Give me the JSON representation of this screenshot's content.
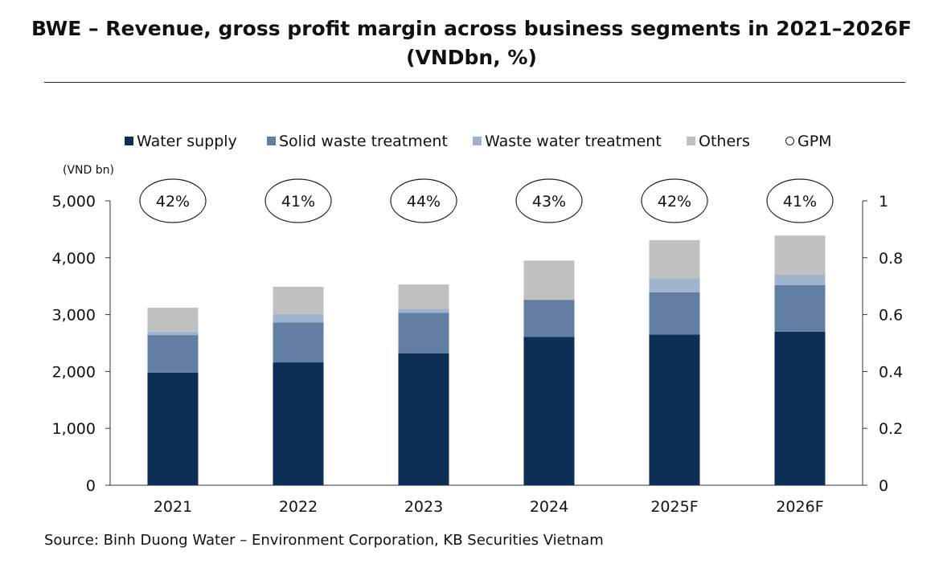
{
  "title": {
    "line1": "BWE – Revenue, gross profit margin across business segments in 2021–2026F",
    "line2": "(VNDbn, %)"
  },
  "unit_label": "(VND bn)",
  "source": "Source: Binh Duong Water – Environment Corporation, KB Securities Vietnam",
  "colors": {
    "water_supply": "#0d2e55",
    "solid_waste": "#627fa3",
    "waste_water": "#9fb3cc",
    "others": "#c0c0c0"
  },
  "chart_data": {
    "type": "bar",
    "stacked": true,
    "title": "BWE – Revenue, gross profit margin across business segments in 2021–2026F (VNDbn, %)",
    "categories": [
      "2021",
      "2022",
      "2023",
      "2024",
      "2025F",
      "2026F"
    ],
    "series": [
      {
        "name": "Water supply",
        "values": [
          1980,
          2160,
          2320,
          2610,
          2650,
          2700
        ]
      },
      {
        "name": "Solid waste treatment",
        "values": [
          660,
          700,
          710,
          650,
          740,
          820
        ]
      },
      {
        "name": "Waste water treatment",
        "values": [
          60,
          150,
          70,
          0,
          240,
          180
        ]
      },
      {
        "name": "Others",
        "values": [
          420,
          480,
          430,
          690,
          680,
          690
        ]
      }
    ],
    "gpm": {
      "name": "GPM",
      "values": [
        "42%",
        "41%",
        "44%",
        "43%",
        "42%",
        "41%"
      ]
    },
    "y_left": {
      "ticks": [
        "0",
        "1,000",
        "2,000",
        "3,000",
        "4,000",
        "5,000"
      ],
      "ylim": [
        0,
        5000
      ]
    },
    "y_right": {
      "ticks": [
        "0",
        "0.2",
        "0.4",
        "0.6",
        "0.8",
        "1"
      ],
      "ylim": [
        0,
        1
      ]
    },
    "legend_position": "top",
    "grid": false
  }
}
